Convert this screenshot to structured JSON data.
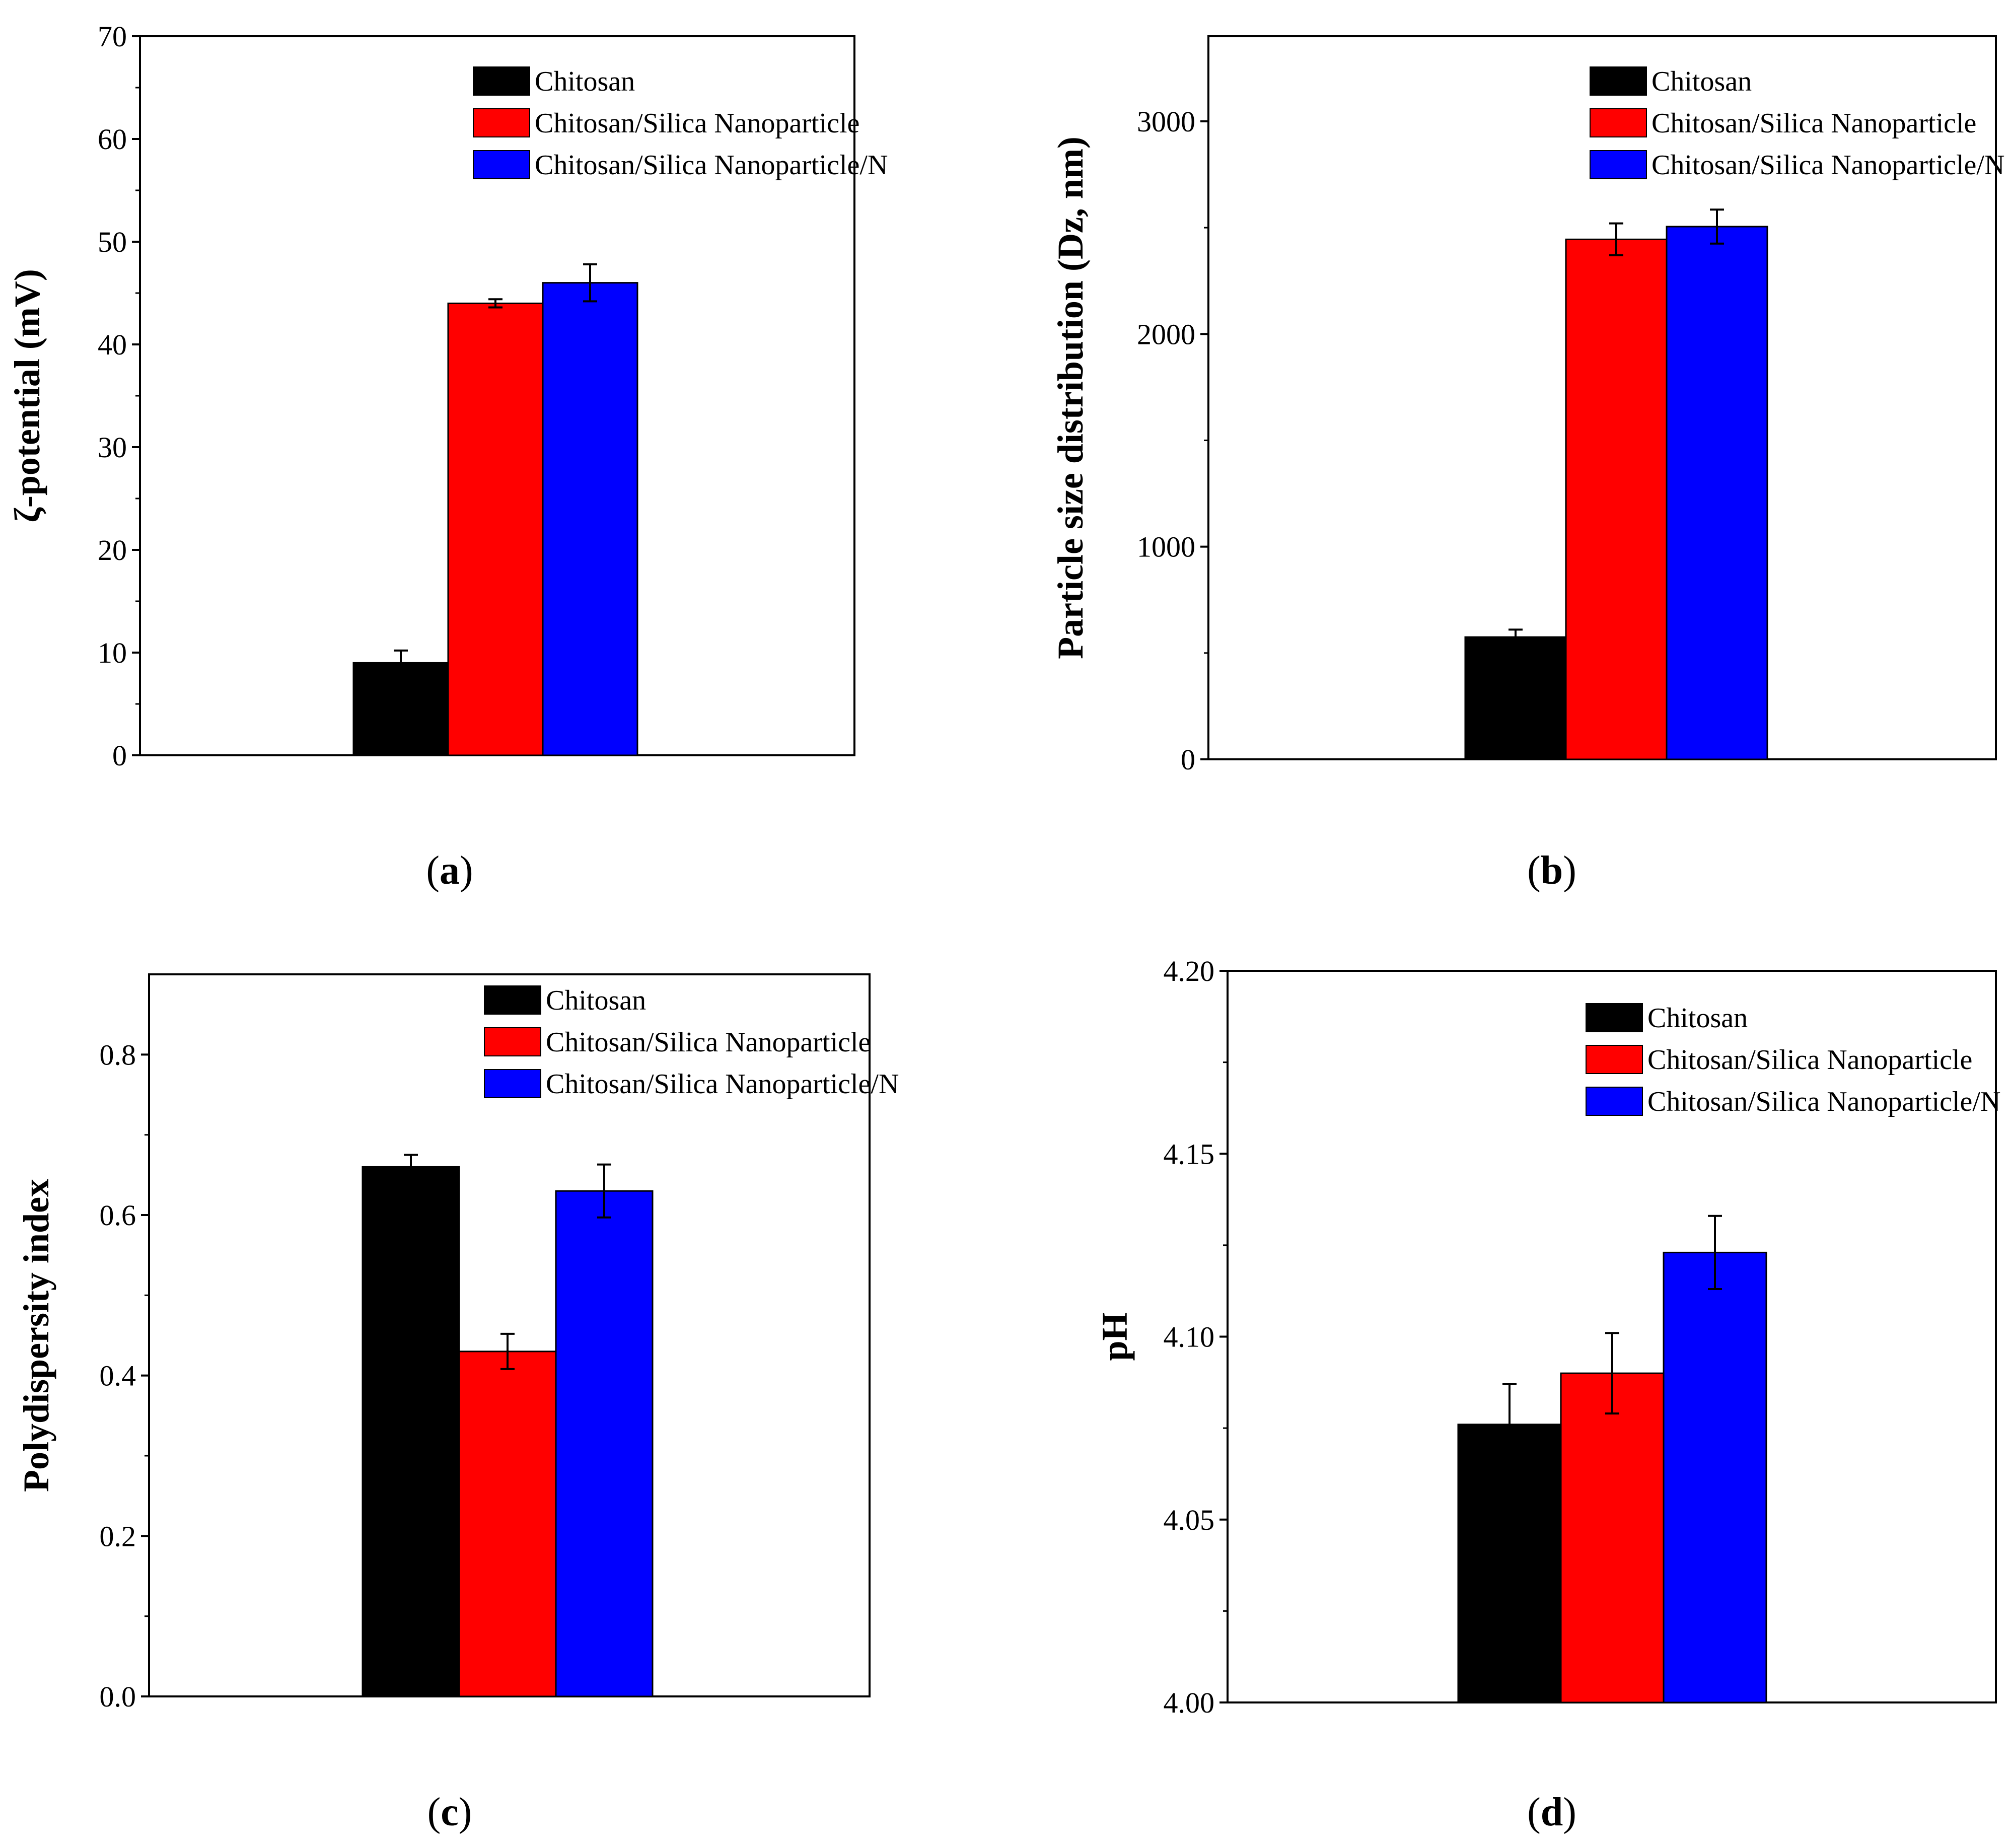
{
  "legend_series": [
    "Chitosan",
    "Chitosan/Silica Nanoparticle",
    "Chitosan/Silica Nanoparticle/N"
  ],
  "colors": {
    "Chitosan": "#000000",
    "Chitosan/Silica Nanoparticle": "#ff0000",
    "Chitosan/Silica Nanoparticle/N": "#0000ff"
  },
  "chart_data": [
    {
      "id": "a",
      "type": "bar",
      "panel_label": "a",
      "title": "",
      "xlabel": "",
      "ylabel": "ζ-potential (mV)",
      "ylim": [
        0,
        70
      ],
      "yticks": [
        "0",
        "10",
        "20",
        "30",
        "40",
        "50",
        "60",
        "70"
      ],
      "legend": [
        "Chitosan",
        "Chitosan/Silica Nanoparticle",
        "Chitosan/Silica Nanoparticle/N"
      ],
      "legend_position": "top-right",
      "series": [
        {
          "name": "Chitosan",
          "value": 9.0,
          "error": 1.2
        },
        {
          "name": "Chitosan/Silica Nanoparticle",
          "value": 44.0,
          "error": 0.4
        },
        {
          "name": "Chitosan/Silica Nanoparticle/N",
          "value": 46.0,
          "error": 1.8
        }
      ]
    },
    {
      "id": "b",
      "type": "bar",
      "panel_label": "b",
      "title": "",
      "xlabel": "",
      "ylabel": "Particle size distribution (Dz, nm)",
      "ylim": [
        0,
        3400
      ],
      "yticks": [
        "0",
        "1000",
        "2000",
        "3000"
      ],
      "legend": [
        "Chitosan",
        "Chitosan/Silica Nanoparticle",
        "Chitosan/Silica Nanoparticle/N"
      ],
      "legend_position": "top-right",
      "series": [
        {
          "name": "Chitosan",
          "value": 575,
          "error": 35
        },
        {
          "name": "Chitosan/Silica Nanoparticle",
          "value": 2445,
          "error": 75
        },
        {
          "name": "Chitosan/Silica Nanoparticle/N",
          "value": 2505,
          "error": 80
        }
      ]
    },
    {
      "id": "c",
      "type": "bar",
      "panel_label": "c",
      "title": "",
      "xlabel": "",
      "ylabel": "Polydispersity index",
      "ylim": [
        0,
        0.9
      ],
      "yticks": [
        "0.0",
        "0.2",
        "0.4",
        "0.6",
        "0.8"
      ],
      "legend": [
        "Chitosan",
        "Chitosan/Silica Nanoparticle",
        "Chitosan/Silica Nanoparticle/N"
      ],
      "legend_position": "top-right",
      "series": [
        {
          "name": "Chitosan",
          "value": 0.66,
          "error": 0.015
        },
        {
          "name": "Chitosan/Silica Nanoparticle",
          "value": 0.43,
          "error": 0.022
        },
        {
          "name": "Chitosan/Silica Nanoparticle/N",
          "value": 0.63,
          "error": 0.033
        }
      ]
    },
    {
      "id": "d",
      "type": "bar",
      "panel_label": "d",
      "title": "",
      "xlabel": "",
      "ylabel": "pH",
      "ylim": [
        4.0,
        4.2
      ],
      "yticks": [
        "4.00",
        "4.05",
        "4.10",
        "4.15",
        "4.20"
      ],
      "legend": [
        "Chitosan",
        "Chitosan/Silica Nanoparticle",
        "Chitosan/Silica Nanoparticle/N"
      ],
      "legend_position": "top-right",
      "series": [
        {
          "name": "Chitosan",
          "value": 4.076,
          "error": 0.011
        },
        {
          "name": "Chitosan/Silica Nanoparticle",
          "value": 4.09,
          "error": 0.011
        },
        {
          "name": "Chitosan/Silica Nanoparticle/N",
          "value": 4.123,
          "error": 0.01
        }
      ]
    }
  ]
}
